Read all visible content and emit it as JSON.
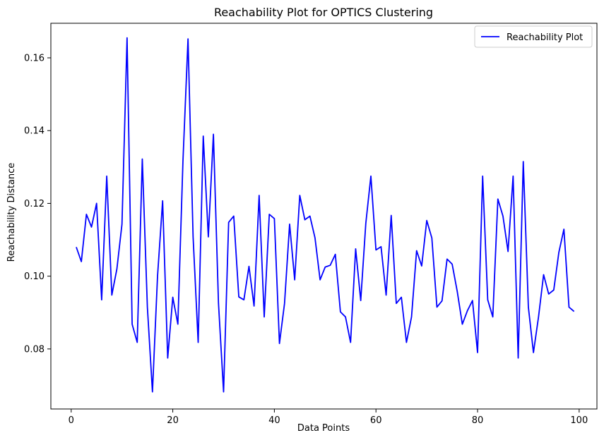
{
  "chart_data": {
    "type": "line",
    "title": "Reachability Plot for OPTICS Clustering",
    "xlabel": "Data Points",
    "ylabel": "Reachability Distance",
    "xlim": [
      -4,
      103.5
    ],
    "ylim": [
      0.0635,
      0.1695
    ],
    "x_ticks": [
      0,
      20,
      40,
      60,
      80,
      100
    ],
    "y_ticks": [
      0.08,
      0.1,
      0.12,
      0.14,
      0.16
    ],
    "y_tick_labels": [
      "0.08",
      "0.10",
      "0.12",
      "0.14",
      "0.16"
    ],
    "grid": false,
    "legend_position": "top-right",
    "series": [
      {
        "name": "Reachability Plot",
        "color": "#0000ff",
        "x": [
          1,
          2,
          3,
          4,
          5,
          6,
          7,
          8,
          9,
          10,
          11,
          12,
          13,
          14,
          15,
          16,
          17,
          18,
          19,
          20,
          21,
          22,
          23,
          24,
          25,
          26,
          27,
          28,
          29,
          30,
          31,
          32,
          33,
          34,
          35,
          36,
          37,
          38,
          39,
          40,
          41,
          42,
          43,
          44,
          45,
          46,
          47,
          48,
          49,
          50,
          51,
          52,
          53,
          54,
          55,
          56,
          57,
          58,
          59,
          60,
          61,
          62,
          63,
          64,
          65,
          66,
          67,
          68,
          69,
          70,
          71,
          72,
          73,
          74,
          75,
          76,
          77,
          78,
          79,
          80,
          81,
          82,
          83,
          84,
          85,
          86,
          87,
          88,
          89,
          90,
          91,
          92,
          93,
          94,
          95,
          96,
          97,
          98,
          99
        ],
        "values": [
          0.108,
          0.104,
          0.117,
          0.1135,
          0.12,
          0.0935,
          0.1275,
          0.0948,
          0.102,
          0.1143,
          0.1655,
          0.0868,
          0.0818,
          0.1322,
          0.0915,
          0.0682,
          0.1,
          0.1207,
          0.0775,
          0.0942,
          0.0868,
          0.1315,
          0.1652,
          0.1108,
          0.0818,
          0.1385,
          0.1108,
          0.139,
          0.0925,
          0.0682,
          0.1148,
          0.1165,
          0.0943,
          0.0935,
          0.1027,
          0.0918,
          0.1222,
          0.0888,
          0.117,
          0.1158,
          0.0815,
          0.0925,
          0.1143,
          0.099,
          0.1222,
          0.1155,
          0.1165,
          0.1105,
          0.099,
          0.1025,
          0.103,
          0.106,
          0.0902,
          0.0888,
          0.0818,
          0.1075,
          0.0933,
          0.1145,
          0.1275,
          0.1072,
          0.1081,
          0.0948,
          0.1167,
          0.0925,
          0.0942,
          0.0818,
          0.0888,
          0.107,
          0.1028,
          0.1153,
          0.1105,
          0.0915,
          0.0932,
          0.1047,
          0.1033,
          0.0958,
          0.0868,
          0.0905,
          0.0933,
          0.079,
          0.1275,
          0.0935,
          0.0888,
          0.1212,
          0.1165,
          0.1068,
          0.1275,
          0.0775,
          0.1315,
          0.0915,
          0.079,
          0.0888,
          0.1004,
          0.0951,
          0.0962,
          0.1065,
          0.1129,
          0.0915,
          0.0903
        ]
      }
    ]
  }
}
